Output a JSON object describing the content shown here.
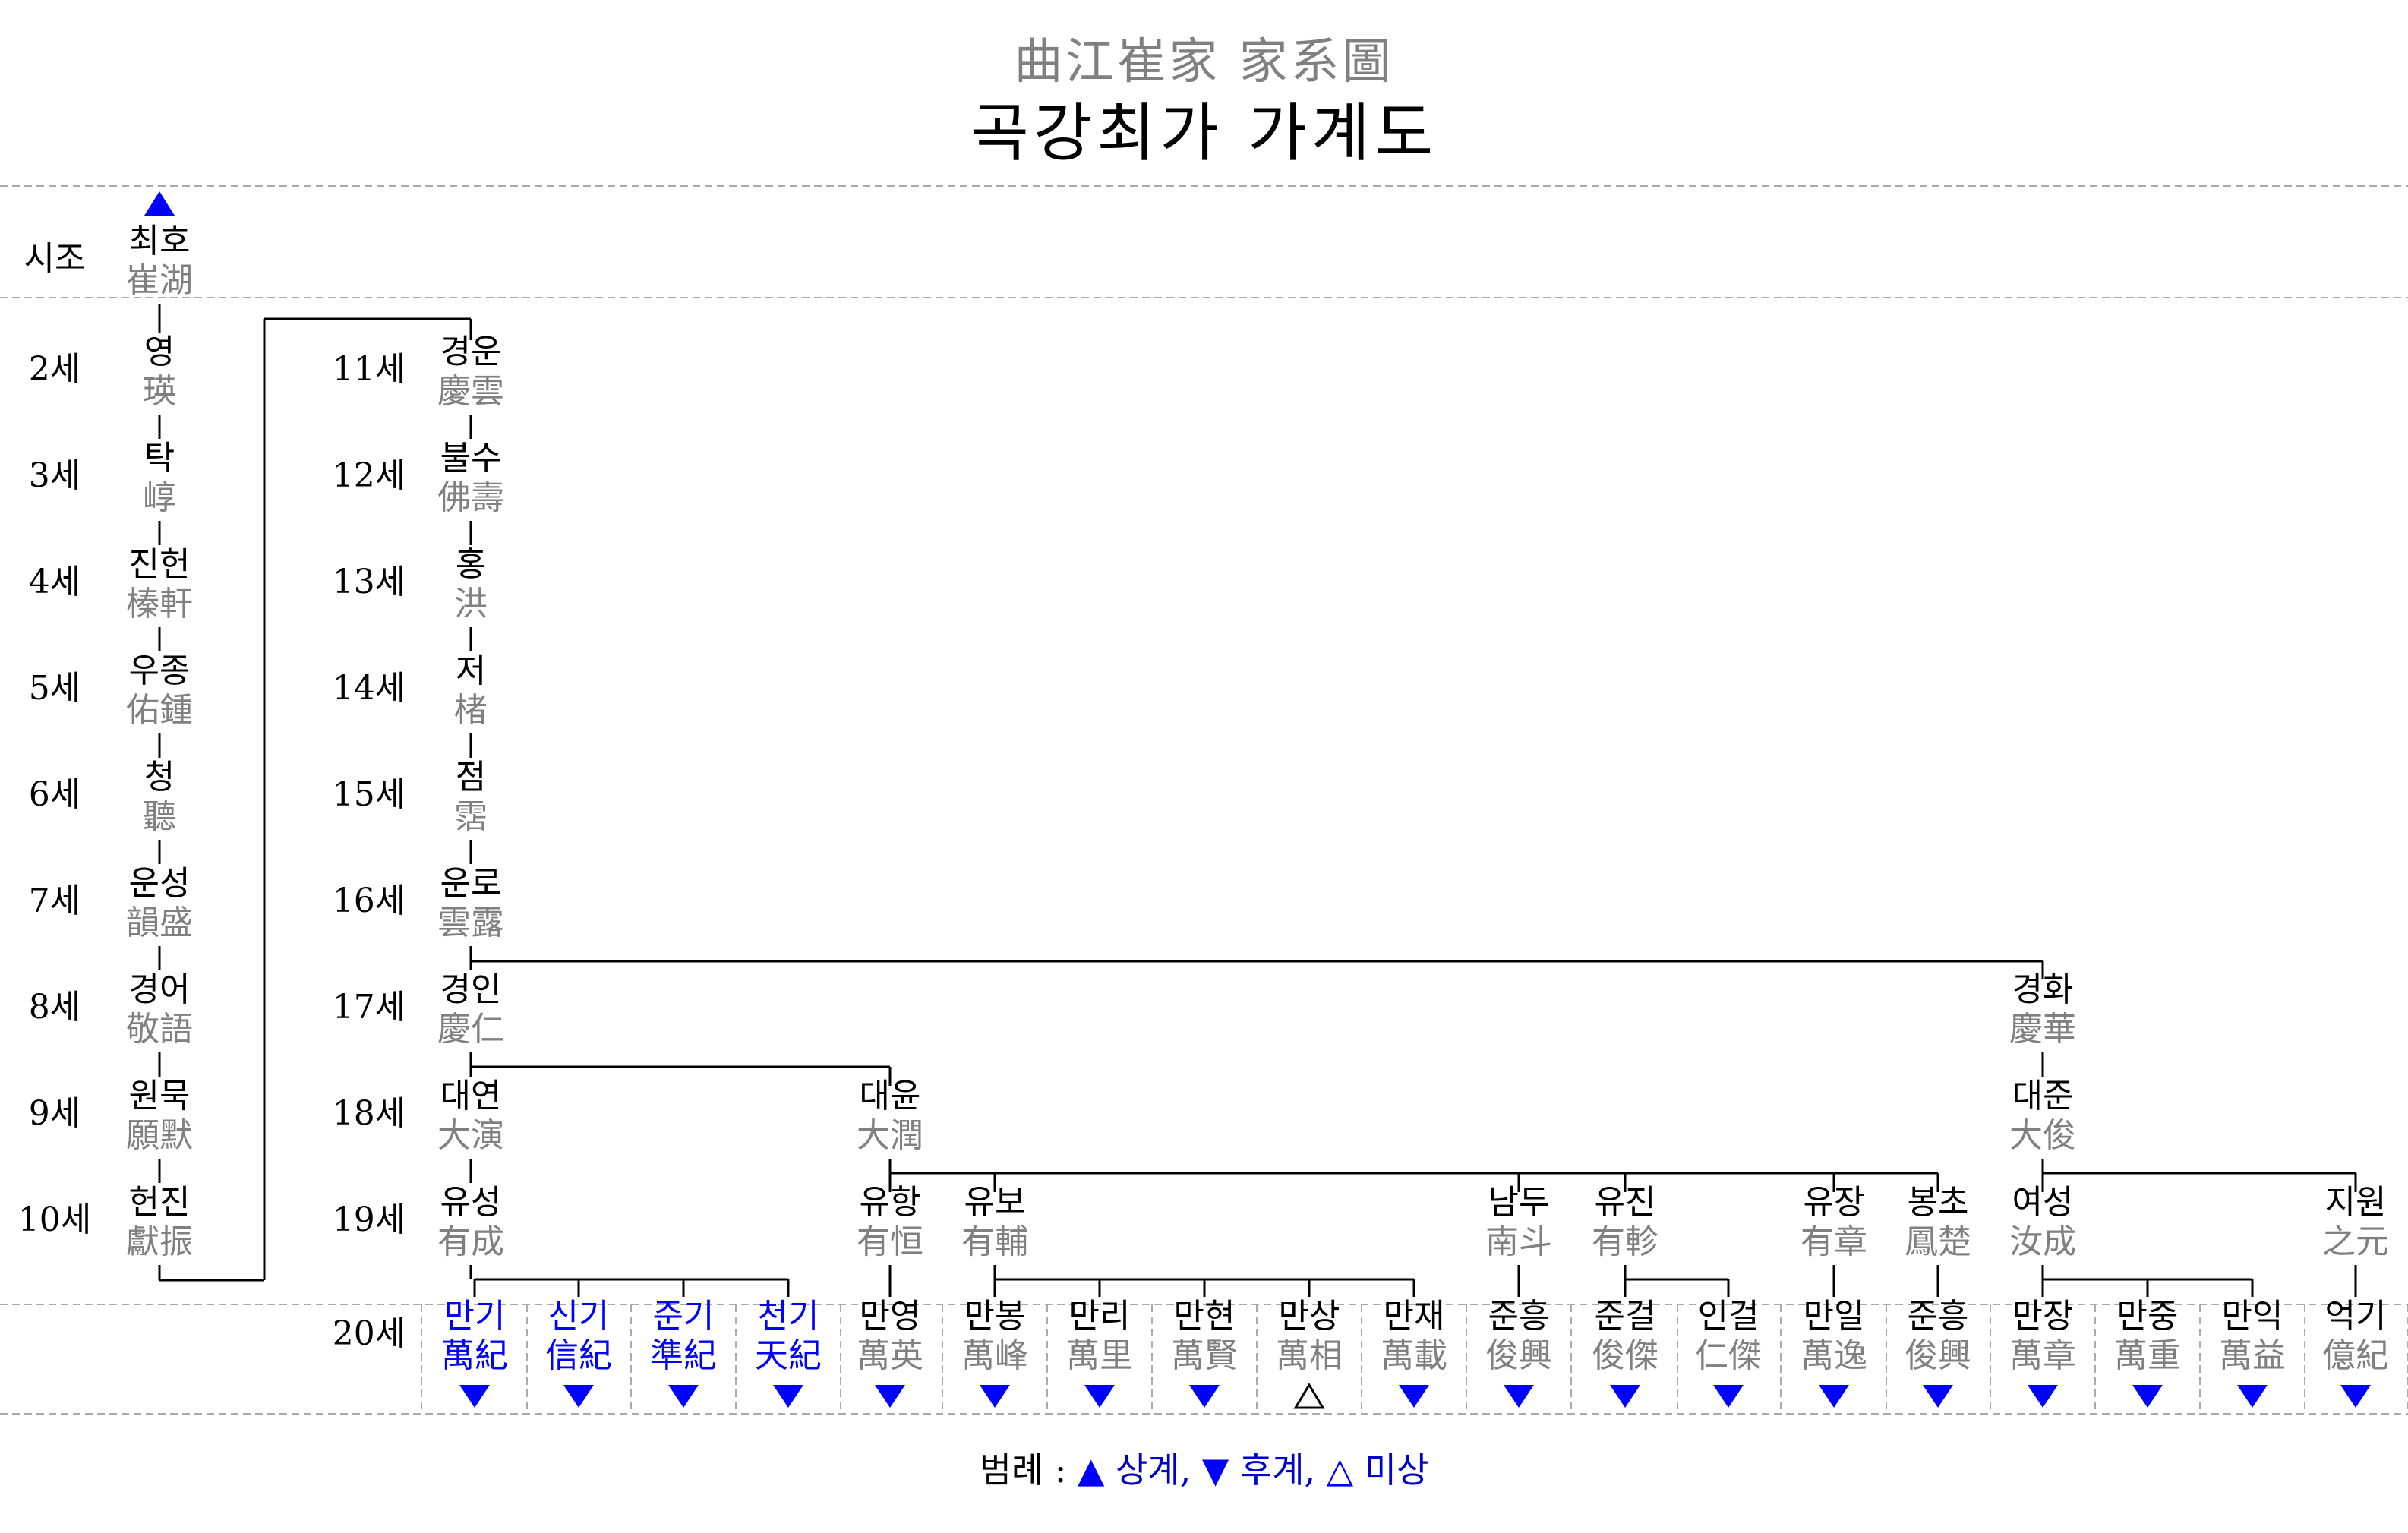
{
  "title_hanja": "曲江崔家 家系圖",
  "title_korean": "곡강최가 가계도",
  "colors": {
    "hanja": "#808080",
    "blue": "#0000ff",
    "line": "#000000",
    "dashed": "#aaaaaa"
  },
  "gen_labels_left": [
    "시조",
    "2세",
    "3세",
    "4세",
    "5세",
    "6세",
    "7세",
    "8세",
    "9세",
    "10세"
  ],
  "gen_labels_right": [
    "11세",
    "12세",
    "13세",
    "14세",
    "15세",
    "16세",
    "17세",
    "18세",
    "19세",
    "20세"
  ],
  "persons": [
    {
      "id": "p1",
      "ko": "최호",
      "zh": "崔湖",
      "mark": "up"
    },
    {
      "id": "p2",
      "ko": "영",
      "zh": "瑛"
    },
    {
      "id": "p3",
      "ko": "탁",
      "zh": "崞"
    },
    {
      "id": "p4",
      "ko": "진헌",
      "zh": "榛軒"
    },
    {
      "id": "p5",
      "ko": "우종",
      "zh": "佑鍾"
    },
    {
      "id": "p6",
      "ko": "청",
      "zh": "聽"
    },
    {
      "id": "p7",
      "ko": "운성",
      "zh": "韻盛"
    },
    {
      "id": "p8",
      "ko": "경어",
      "zh": "敬語"
    },
    {
      "id": "p9",
      "ko": "원묵",
      "zh": "願默"
    },
    {
      "id": "p10",
      "ko": "헌진",
      "zh": "獻振"
    },
    {
      "id": "p11",
      "ko": "경운",
      "zh": "慶雲"
    },
    {
      "id": "p12",
      "ko": "불수",
      "zh": "佛壽"
    },
    {
      "id": "p13",
      "ko": "홍",
      "zh": "洪"
    },
    {
      "id": "p14",
      "ko": "저",
      "zh": "楮"
    },
    {
      "id": "p15",
      "ko": "점",
      "zh": "霑"
    },
    {
      "id": "p16",
      "ko": "운로",
      "zh": "雲露"
    },
    {
      "id": "p17a",
      "ko": "경인",
      "zh": "慶仁"
    },
    {
      "id": "p17b",
      "ko": "경화",
      "zh": "慶華"
    },
    {
      "id": "p18a",
      "ko": "대연",
      "zh": "大演"
    },
    {
      "id": "p18b",
      "ko": "대윤",
      "zh": "大潤"
    },
    {
      "id": "p18c",
      "ko": "대준",
      "zh": "大俊"
    },
    {
      "id": "p19a",
      "ko": "유성",
      "zh": "有成"
    },
    {
      "id": "p19b",
      "ko": "유항",
      "zh": "有恒"
    },
    {
      "id": "p19c",
      "ko": "유보",
      "zh": "有輔"
    },
    {
      "id": "p19d",
      "ko": "남두",
      "zh": "南斗"
    },
    {
      "id": "p19e",
      "ko": "유진",
      "zh": "有軫"
    },
    {
      "id": "p19f",
      "ko": "유장",
      "zh": "有章"
    },
    {
      "id": "p19g",
      "ko": "봉초",
      "zh": "鳳楚"
    },
    {
      "id": "p19h",
      "ko": "여성",
      "zh": "汝成"
    },
    {
      "id": "p19i",
      "ko": "지원",
      "zh": "之元"
    },
    {
      "id": "c1",
      "ko": "만기",
      "zh": "萬紀",
      "blue": true,
      "mark": "down"
    },
    {
      "id": "c2",
      "ko": "신기",
      "zh": "信紀",
      "blue": true,
      "mark": "down"
    },
    {
      "id": "c3",
      "ko": "준기",
      "zh": "準紀",
      "blue": true,
      "mark": "down"
    },
    {
      "id": "c4",
      "ko": "천기",
      "zh": "天紀",
      "blue": true,
      "mark": "down"
    },
    {
      "id": "c5",
      "ko": "만영",
      "zh": "萬英",
      "mark": "down"
    },
    {
      "id": "c6",
      "ko": "만봉",
      "zh": "萬峰",
      "mark": "down"
    },
    {
      "id": "c7",
      "ko": "만리",
      "zh": "萬里",
      "mark": "down"
    },
    {
      "id": "c8",
      "ko": "만현",
      "zh": "萬賢",
      "mark": "down"
    },
    {
      "id": "c9",
      "ko": "만상",
      "zh": "萬相",
      "mark": "unknown"
    },
    {
      "id": "c10",
      "ko": "만재",
      "zh": "萬載",
      "mark": "down"
    },
    {
      "id": "c11",
      "ko": "준흥",
      "zh": "俊興",
      "mark": "down"
    },
    {
      "id": "c12",
      "ko": "준걸",
      "zh": "俊傑",
      "mark": "down"
    },
    {
      "id": "c13",
      "ko": "인걸",
      "zh": "仁傑",
      "mark": "down"
    },
    {
      "id": "c14",
      "ko": "만일",
      "zh": "萬逸",
      "mark": "down"
    },
    {
      "id": "c15",
      "ko": "준흥",
      "zh": "俊興",
      "mark": "down"
    },
    {
      "id": "c16",
      "ko": "만장",
      "zh": "萬章",
      "mark": "down"
    },
    {
      "id": "c17",
      "ko": "만중",
      "zh": "萬重",
      "mark": "down"
    },
    {
      "id": "c18",
      "ko": "만익",
      "zh": "萬益",
      "mark": "down"
    },
    {
      "id": "c19",
      "ko": "억기",
      "zh": "億紀",
      "mark": "down"
    }
  ],
  "legend": {
    "label": "범례 :",
    "up_symbol": "▲",
    "up_text": "상계,",
    "down_symbol": "▼",
    "down_text": "후계,",
    "unknown_symbol": "△",
    "unknown_text": "미상"
  }
}
